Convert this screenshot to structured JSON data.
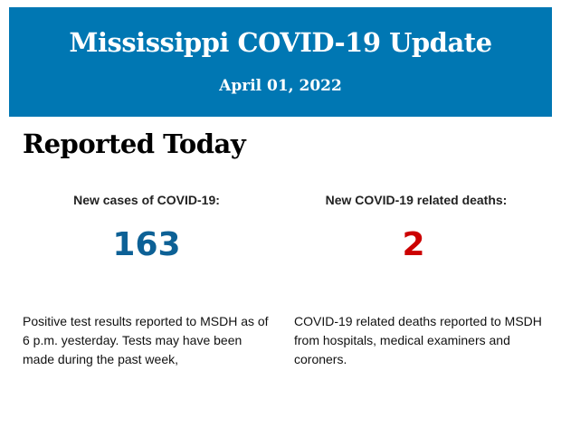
{
  "header": {
    "title": "Mississippi COVID-19 Update",
    "date": "April 01, 2022"
  },
  "section_title": "Reported Today",
  "cases": {
    "label": "New cases of COVID-19:",
    "value": "163",
    "color": "#0d6196",
    "description": "Positive test results reported to MSDH as of 6 p.m. yesterday. Tests may have been made during the past week,"
  },
  "deaths": {
    "label": "New COVID-19 related deaths:",
    "value": "2",
    "color": "#cc0000",
    "description": "COVID-19 related deaths reported to MSDH from hospitals, medical examiners and coroners."
  }
}
